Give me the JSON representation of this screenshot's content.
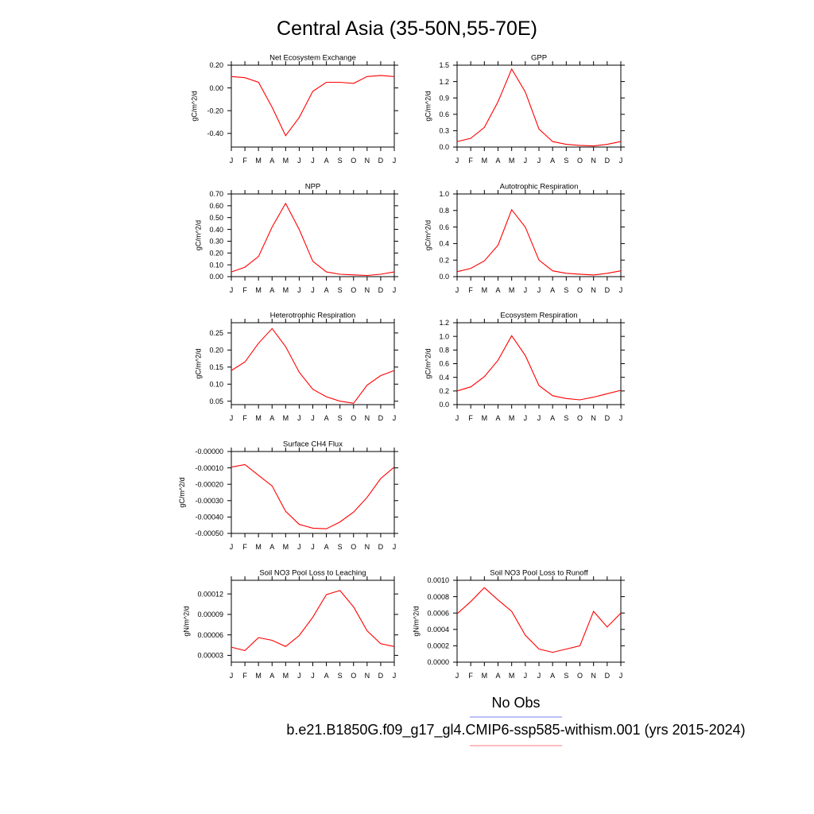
{
  "figure": {
    "title": "Central Asia (35-50N,55-70E)",
    "legend": [
      {
        "label": "No Obs",
        "color": "#7b83ef"
      },
      {
        "label": "b.e21.B1850G.f09_g17_gl4.CMIP6-ssp585-withism.001 (yrs 2015-2024)",
        "color": "#ff7b7b"
      }
    ]
  },
  "chart_data": [
    {
      "type": "line",
      "title": "Net Ecosystem Exchange",
      "ylabel": "gC/m^2/d",
      "xticks": [
        "J",
        "F",
        "M",
        "A",
        "M",
        "J",
        "J",
        "A",
        "S",
        "O",
        "N",
        "D",
        "J"
      ],
      "ylim": [
        -0.52,
        0.2
      ],
      "yticks": [
        "0.20",
        "0.00",
        "-0.20",
        "-0.40"
      ],
      "ytick_values": [
        0.2,
        0.0,
        -0.2,
        -0.4
      ],
      "series": [
        {
          "color": "#ff0000",
          "values": [
            0.1,
            0.09,
            0.05,
            -0.17,
            -0.42,
            -0.26,
            -0.03,
            0.05,
            0.05,
            0.04,
            0.1,
            0.11,
            0.1
          ]
        }
      ]
    },
    {
      "type": "line",
      "title": "GPP",
      "ylabel": "gC/m^2/d",
      "xticks": [
        "J",
        "F",
        "M",
        "A",
        "M",
        "J",
        "J",
        "A",
        "S",
        "O",
        "N",
        "D",
        "J"
      ],
      "ylim": [
        0,
        1.5
      ],
      "yticks": [
        "1.5",
        "1.2",
        "0.9",
        "0.6",
        "0.3",
        "0.0"
      ],
      "ytick_values": [
        1.5,
        1.2,
        0.9,
        0.6,
        0.3,
        0.0
      ],
      "series": [
        {
          "color": "#ff0000",
          "values": [
            0.1,
            0.16,
            0.36,
            0.83,
            1.43,
            1.01,
            0.33,
            0.1,
            0.05,
            0.03,
            0.02,
            0.05,
            0.1
          ]
        }
      ]
    },
    {
      "type": "line",
      "title": "NPP",
      "ylabel": "gC/m^2/d",
      "xticks": [
        "J",
        "F",
        "M",
        "A",
        "M",
        "J",
        "J",
        "A",
        "S",
        "O",
        "N",
        "D",
        "J"
      ],
      "ylim": [
        0,
        0.7
      ],
      "yticks": [
        "0.70",
        "0.60",
        "0.50",
        "0.40",
        "0.30",
        "0.20",
        "0.10",
        "0.00"
      ],
      "ytick_values": [
        0.7,
        0.6,
        0.5,
        0.4,
        0.3,
        0.2,
        0.1,
        0.0
      ],
      "series": [
        {
          "color": "#ff0000",
          "values": [
            0.04,
            0.08,
            0.17,
            0.42,
            0.62,
            0.4,
            0.13,
            0.04,
            0.02,
            0.015,
            0.01,
            0.02,
            0.04
          ]
        }
      ]
    },
    {
      "type": "line",
      "title": "Autotrophic Respiration",
      "ylabel": "gC/m^2/d",
      "xticks": [
        "J",
        "F",
        "M",
        "A",
        "M",
        "J",
        "J",
        "A",
        "S",
        "O",
        "N",
        "D",
        "J"
      ],
      "ylim": [
        0,
        1.0
      ],
      "yticks": [
        "1.0",
        "0.8",
        "0.6",
        "0.4",
        "0.2",
        "0.0"
      ],
      "ytick_values": [
        1.0,
        0.8,
        0.6,
        0.4,
        0.2,
        0.0
      ],
      "series": [
        {
          "color": "#ff0000",
          "values": [
            0.06,
            0.1,
            0.19,
            0.38,
            0.81,
            0.6,
            0.2,
            0.07,
            0.04,
            0.03,
            0.02,
            0.04,
            0.07
          ]
        }
      ]
    },
    {
      "type": "line",
      "title": "Heterotrophic Respiration",
      "ylabel": "gC/m^2/d",
      "xticks": [
        "J",
        "F",
        "M",
        "A",
        "M",
        "J",
        "J",
        "A",
        "S",
        "O",
        "N",
        "D",
        "J"
      ],
      "ylim": [
        0.04,
        0.28
      ],
      "yticks": [
        "0.25",
        "0.20",
        "0.15",
        "0.10",
        "0.05"
      ],
      "ytick_values": [
        0.25,
        0.2,
        0.15,
        0.1,
        0.05
      ],
      "series": [
        {
          "color": "#ff0000",
          "values": [
            0.14,
            0.165,
            0.22,
            0.263,
            0.21,
            0.135,
            0.085,
            0.063,
            0.05,
            0.044,
            0.097,
            0.125,
            0.14
          ]
        }
      ]
    },
    {
      "type": "line",
      "title": "Ecosystem Respiration",
      "ylabel": "gC/m^2/d",
      "xticks": [
        "J",
        "F",
        "M",
        "A",
        "M",
        "J",
        "J",
        "A",
        "S",
        "O",
        "N",
        "D",
        "J"
      ],
      "ylim": [
        0,
        1.2
      ],
      "yticks": [
        "1.2",
        "1.0",
        "0.8",
        "0.6",
        "0.4",
        "0.2",
        "0.0"
      ],
      "ytick_values": [
        1.2,
        1.0,
        0.8,
        0.6,
        0.4,
        0.2,
        0.0
      ],
      "series": [
        {
          "color": "#ff0000",
          "values": [
            0.2,
            0.26,
            0.41,
            0.65,
            1.01,
            0.72,
            0.28,
            0.13,
            0.09,
            0.07,
            0.11,
            0.16,
            0.21
          ]
        }
      ]
    },
    {
      "type": "line",
      "title": "Surface CH4 Flux",
      "ylabel": "gC/m^2/d",
      "xticks": [
        "J",
        "F",
        "M",
        "A",
        "M",
        "J",
        "J",
        "A",
        "S",
        "O",
        "N",
        "D",
        "J"
      ],
      "ylim": [
        -0.0005,
        0.0
      ],
      "yticks": [
        "-0.00000",
        "-0.00010",
        "-0.00020",
        "-0.00030",
        "-0.00040",
        "-0.00050"
      ],
      "ytick_values": [
        0.0,
        -0.0001,
        -0.0002,
        -0.0003,
        -0.0004,
        -0.0005
      ],
      "series": [
        {
          "color": "#ff0000",
          "values": [
            -9.5e-05,
            -8e-05,
            -0.000145,
            -0.00021,
            -0.000365,
            -0.000445,
            -0.000468,
            -0.000472,
            -0.00043,
            -0.00037,
            -0.00028,
            -0.000165,
            -9.5e-05
          ]
        }
      ]
    },
    {
      "type": "line",
      "title": "Soil NO3 Pool Loss to Leaching",
      "ylabel": "gN/m^2/d",
      "xticks": [
        "J",
        "F",
        "M",
        "A",
        "M",
        "J",
        "J",
        "A",
        "S",
        "O",
        "N",
        "D",
        "J"
      ],
      "ylim": [
        2e-05,
        0.00014
      ],
      "yticks": [
        "0.00012",
        "0.00009",
        "0.00006",
        "0.00003"
      ],
      "ytick_values": [
        0.00012,
        9e-05,
        6e-05,
        3e-05
      ],
      "series": [
        {
          "color": "#ff0000",
          "values": [
            4.2e-05,
            3.7e-05,
            5.6e-05,
            5.2e-05,
            4.3e-05,
            5.9e-05,
            8.6e-05,
            0.000119,
            0.000125,
            0.000101,
            6.6e-05,
            4.7e-05,
            4.3e-05
          ]
        }
      ]
    },
    {
      "type": "line",
      "title": "Soil NO3 Pool Loss to Runoff",
      "ylabel": "gN/m^2/d",
      "xticks": [
        "J",
        "F",
        "M",
        "A",
        "M",
        "J",
        "J",
        "A",
        "S",
        "O",
        "N",
        "D",
        "J"
      ],
      "ylim": [
        0,
        0.001
      ],
      "yticks": [
        "0.0010",
        "0.0008",
        "0.0006",
        "0.0004",
        "0.0002",
        "0.0000"
      ],
      "ytick_values": [
        0.001,
        0.0008,
        0.0006,
        0.0004,
        0.0002,
        0.0
      ],
      "series": [
        {
          "color": "#ff0000",
          "values": [
            0.00059,
            0.00074,
            0.00091,
            0.00076,
            0.00062,
            0.00033,
            0.00016,
            0.00012,
            0.00016,
            0.0002,
            0.00062,
            0.00043,
            0.0006
          ]
        }
      ]
    }
  ]
}
